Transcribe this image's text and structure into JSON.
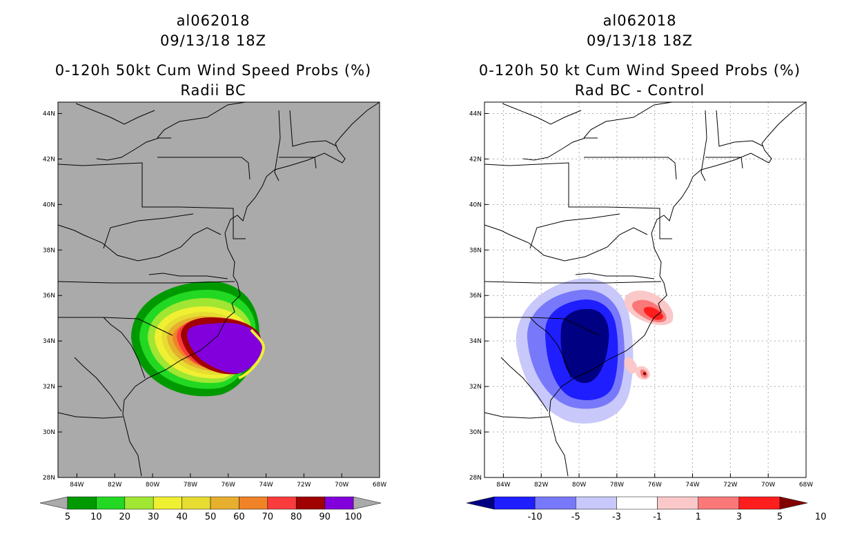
{
  "panels": [
    {
      "storm_id": "al062018",
      "datetime": "09/13/18 18Z",
      "title": "0-120h 50kt Cum Wind Speed Probs (%)",
      "subtitle": "Radii BC",
      "background_color": "#aaaaaa",
      "colorbar": {
        "colors": [
          "#009a00",
          "#22d822",
          "#a0e632",
          "#f0f032",
          "#e6dc32",
          "#e6af2d",
          "#f08228",
          "#fa3c3c",
          "#a00000",
          "#8200dc"
        ],
        "labels": [
          "5",
          "10",
          "20",
          "30",
          "40",
          "50",
          "60",
          "70",
          "80",
          "90",
          "100"
        ]
      }
    },
    {
      "storm_id": "al062018",
      "datetime": "09/13/18 18Z",
      "title": "0-120h 50 kt Cum Wind Speed Probs (%)",
      "subtitle": "Rad BC - Control",
      "background_color": "#ffffff",
      "colorbar": {
        "colors": [
          "#000082",
          "#1e1eff",
          "#7878fa",
          "#c8c8fa",
          "#ffffff",
          "#fac8c8",
          "#fa7878",
          "#ff1e1e",
          "#820000"
        ],
        "labels": [
          "-10",
          "-5",
          "-3",
          "-1",
          "1",
          "3",
          "5",
          "10"
        ]
      }
    }
  ],
  "map": {
    "lon_labels": [
      "84W",
      "82W",
      "80W",
      "78W",
      "76W",
      "74W",
      "72W",
      "70W",
      "68W"
    ],
    "lat_labels": [
      "44N",
      "42N",
      "40N",
      "38N",
      "36N",
      "34N",
      "32N",
      "30N",
      "28N"
    ],
    "lon_values": [
      -84,
      -82,
      -80,
      -78,
      -76,
      -74,
      -72,
      -70,
      -68
    ],
    "lat_values": [
      44,
      42,
      40,
      38,
      36,
      34,
      32,
      30,
      28
    ]
  }
}
